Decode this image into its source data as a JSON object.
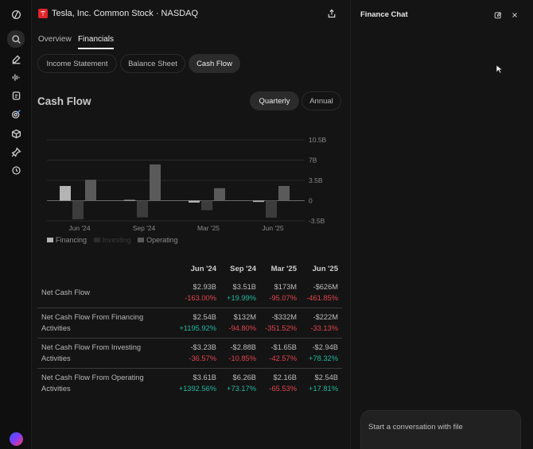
{
  "app": {
    "stock_title": "Tesla, Inc. Common Stock · NASDAQ",
    "brand_color": "#e0242b"
  },
  "rail": {
    "icons": [
      "app-logo-icon",
      "search-icon",
      "compose-icon",
      "waveform-icon",
      "document-icon",
      "target-icon",
      "cube-icon",
      "pin-icon",
      "history-icon"
    ]
  },
  "tabs": [
    {
      "label": "Overview"
    },
    {
      "label": "Financials",
      "active": true
    }
  ],
  "statement_tabs": [
    {
      "label": "Income Statement"
    },
    {
      "label": "Balance Sheet"
    },
    {
      "label": "Cash Flow",
      "active": true
    }
  ],
  "section": {
    "title": "Cash Flow",
    "period_options": [
      {
        "label": "Quarterly",
        "active": true
      },
      {
        "label": "Annual"
      }
    ]
  },
  "chart_data": {
    "type": "bar",
    "categories": [
      "Jun '24",
      "",
      "Sep '24",
      "",
      "Mar '25",
      "",
      "Jun '25",
      ""
    ],
    "x_tick_labels": [
      "Jun '24",
      "Sep '24",
      "Mar '25",
      "Jun '25"
    ],
    "y_tick_labels": [
      "10.5B",
      "7B",
      "3.5B",
      "0",
      "-3.5B"
    ],
    "ylim": [
      -3.5,
      10.5
    ],
    "unit": "B",
    "grid": true,
    "legend_position": "bottom-left",
    "series": [
      {
        "name": "Financing",
        "color": "#b4b4b4",
        "values": [
          2.54,
          0.0,
          0.13,
          0.0,
          -0.33,
          0.0,
          -0.22,
          0.0
        ]
      },
      {
        "name": "Investing",
        "color": "#3c3c3c",
        "values": [
          -3.23,
          0.0,
          -2.88,
          0.0,
          -1.65,
          0.0,
          -2.94,
          0.0
        ]
      },
      {
        "name": "Operating",
        "color": "#5a5a5a",
        "values": [
          3.61,
          0.0,
          6.26,
          0.0,
          2.16,
          0.0,
          2.54,
          0.0
        ]
      }
    ]
  },
  "table": {
    "columns": [
      "Jun '24",
      "Sep '24",
      "Mar '25",
      "Jun '25"
    ],
    "rows": [
      {
        "label": "Net Cash Flow",
        "cells": [
          {
            "value": "$2.93B",
            "change": "-163.00%",
            "dir": "neg"
          },
          {
            "value": "$3.51B",
            "change": "+19.99%",
            "dir": "pos"
          },
          {
            "value": "$173M",
            "change": "-95.07%",
            "dir": "neg"
          },
          {
            "value": "-$626M",
            "change": "-461.85%",
            "dir": "neg"
          }
        ]
      },
      {
        "label": "Net Cash Flow From Financing Activities",
        "cells": [
          {
            "value": "$2.54B",
            "change": "+1195.92%",
            "dir": "pos"
          },
          {
            "value": "$132M",
            "change": "-94.80%",
            "dir": "neg"
          },
          {
            "value": "-$332M",
            "change": "-351.52%",
            "dir": "neg"
          },
          {
            "value": "-$222M",
            "change": "-33.13%",
            "dir": "neg"
          }
        ]
      },
      {
        "label": "Net Cash Flow From Investing Activities",
        "cells": [
          {
            "value": "-$3.23B",
            "change": "-36.57%",
            "dir": "neg"
          },
          {
            "value": "-$2.88B",
            "change": "-10.85%",
            "dir": "neg"
          },
          {
            "value": "-$1.65B",
            "change": "-42.57%",
            "dir": "neg"
          },
          {
            "value": "-$2.94B",
            "change": "+78.32%",
            "dir": "pos"
          }
        ]
      },
      {
        "label": "Net Cash Flow From Operating Activities",
        "cells": [
          {
            "value": "$3.61B",
            "change": "+1392.56%",
            "dir": "pos"
          },
          {
            "value": "$6.26B",
            "change": "+73.17%",
            "dir": "pos"
          },
          {
            "value": "$2.16B",
            "change": "-65.53%",
            "dir": "neg"
          },
          {
            "value": "$2.54B",
            "change": "+17.81%",
            "dir": "pos"
          }
        ]
      }
    ]
  },
  "finance_chat": {
    "title": "Finance Chat",
    "placeholder": "Start a conversation with file"
  }
}
